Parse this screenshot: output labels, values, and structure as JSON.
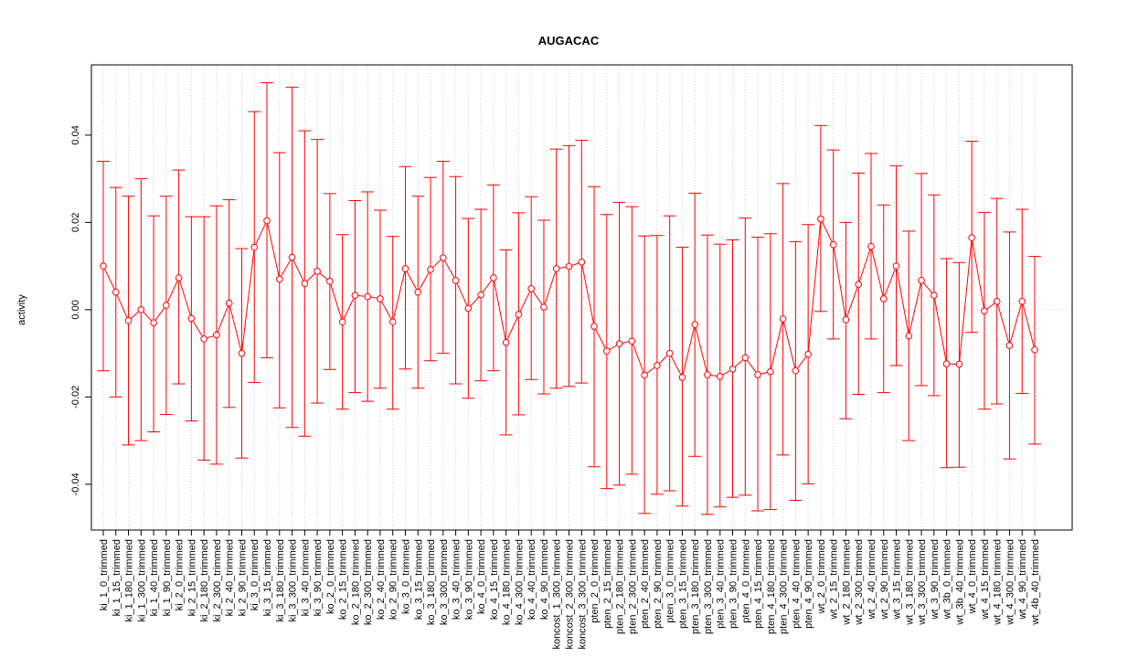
{
  "chart_data": {
    "type": "errorbar",
    "title": "AUGACAC",
    "ylabel": "activity",
    "categories": [
      "ki_1_0_trimmed",
      "ki_1_15_trimmed",
      "ki_1_180_trimmed",
      "ki_1_300_trimmed",
      "ki_1_40_trimmed",
      "ki_1_90_trimmed",
      "ki_2_0_trimmed",
      "ki_2_15_trimmed",
      "ki_2_180_trimmed",
      "ki_2_300_trimmed",
      "ki_2_40_trimmed",
      "ki_2_90_trimmed",
      "ki_3_0_trimmed",
      "ki_3_15_trimmed",
      "ki_3_180_trimmed",
      "ki_3_300_trimmed",
      "ki_3_40_trimmed",
      "ki_3_90_trimmed",
      "ko_2_0_trimmed",
      "ko_2_15_trimmed",
      "ko_2_180_trimmed",
      "ko_2_300_trimmed",
      "ko_2_40_trimmed",
      "ko_2_90_trimmed",
      "ko_3_0_trimmed",
      "ko_3_15_trimmed",
      "ko_3_180_trimmed",
      "ko_3_300_trimmed",
      "ko_3_40_trimmed",
      "ko_3_90_trimmed",
      "ko_4_0_trimmed",
      "ko_4_15_trimmed",
      "ko_4_180_trimmed",
      "ko_4_300_trimmed",
      "ko_4_40_trimmed",
      "ko_4_90_trimmed",
      "koncost_1_300_trimmed",
      "koncost_2_300_trimmed",
      "koncost_3_300_trimmed",
      "pten_2_0_trimmed",
      "pten_2_15_trimmed",
      "pten_2_180_trimmed",
      "pten_2_300_trimmed",
      "pten_2_40_trimmed",
      "pten_2_90_trimmed",
      "pten_3_0_trimmed",
      "pten_3_15_trimmed",
      "pten_3_180_trimmed",
      "pten_3_300_trimmed",
      "pten_3_40_trimmed",
      "pten_3_90_trimmed",
      "pten_4_0_trimmed",
      "pten_4_15_trimmed",
      "pten_4_180_trimmed",
      "pten_4_300_trimmed",
      "pten_4_40_trimmed",
      "pten_4_90_trimmed",
      "wt_2_0_trimmed",
      "wt_2_15_trimmed",
      "wt_2_180_trimmed",
      "wt_2_300_trimmed",
      "wt_2_40_trimmed",
      "wt_2_90_trimmed",
      "wt_3_15_trimmed",
      "wt_3_180_trimmed",
      "wt_3_300_trimmed",
      "wt_3_90_trimmed",
      "wt_3b_0_trimmed",
      "wt_3b_40_trimmed",
      "wt_4_0_trimmed",
      "wt_4_15_trimmed",
      "wt_4_180_trimmed",
      "wt_4_300_trimmed",
      "wt_4_90_trimmed",
      "wt_4b_40_trimmed"
    ],
    "values": [
      0.01,
      0.004,
      -0.0025,
      0.0,
      -0.003,
      0.001,
      0.0073,
      -0.002,
      -0.0067,
      -0.0058,
      0.0015,
      -0.01,
      0.0143,
      0.0204,
      0.007,
      0.012,
      0.006,
      0.0088,
      0.0065,
      -0.0028,
      0.0033,
      0.003,
      0.0025,
      -0.0028,
      0.0094,
      0.004,
      0.0092,
      0.0119,
      0.0067,
      0.0003,
      0.0034,
      0.0073,
      -0.0075,
      -0.0011,
      0.0048,
      0.0006,
      0.0094,
      0.0099,
      0.0109,
      -0.0038,
      -0.0095,
      -0.0078,
      -0.0072,
      -0.015,
      -0.0128,
      -0.01,
      -0.0155,
      -0.0034,
      -0.0149,
      -0.0153,
      -0.0136,
      -0.011,
      -0.0149,
      -0.0142,
      -0.0021,
      -0.014,
      -0.0102,
      0.0208,
      0.0149,
      -0.0023,
      0.0058,
      0.0145,
      0.0025,
      0.01,
      -0.006,
      0.0067,
      0.0033,
      -0.0124,
      -0.0125,
      0.0165,
      -0.0003,
      0.0019,
      -0.0082,
      0.0019,
      -0.0092
    ],
    "upper": [
      0.034,
      0.028,
      0.026,
      0.03,
      0.0215,
      0.026,
      0.032,
      0.0213,
      0.0213,
      0.0238,
      0.0252,
      0.014,
      0.0454,
      0.052,
      0.036,
      0.051,
      0.041,
      0.039,
      0.0266,
      0.0172,
      0.025,
      0.027,
      0.0228,
      0.0168,
      0.0328,
      0.026,
      0.0303,
      0.034,
      0.0305,
      0.0209,
      0.023,
      0.0286,
      0.0137,
      0.0222,
      0.0259,
      0.0205,
      0.0368,
      0.0376,
      0.0388,
      0.0282,
      0.0218,
      0.0246,
      0.0236,
      0.0169,
      0.017,
      0.0215,
      0.0143,
      0.0267,
      0.0171,
      0.015,
      0.016,
      0.021,
      0.0166,
      0.0174,
      0.0289,
      0.0156,
      0.0195,
      0.0422,
      0.0366,
      0.02,
      0.0313,
      0.0358,
      0.024,
      0.033,
      0.018,
      0.0312,
      0.0263,
      0.0117,
      0.0108,
      0.0386,
      0.0223,
      0.0255,
      0.0178,
      0.023,
      0.0122
    ],
    "lower": [
      -0.014,
      -0.02,
      -0.031,
      -0.03,
      -0.028,
      -0.024,
      -0.017,
      -0.0255,
      -0.0345,
      -0.0354,
      -0.0224,
      -0.034,
      -0.0167,
      -0.011,
      -0.0225,
      -0.027,
      -0.029,
      -0.0214,
      -0.0137,
      -0.0228,
      -0.019,
      -0.021,
      -0.018,
      -0.0228,
      -0.0136,
      -0.018,
      -0.0117,
      -0.01,
      -0.017,
      -0.0203,
      -0.0163,
      -0.014,
      -0.0287,
      -0.0241,
      -0.016,
      -0.0193,
      -0.018,
      -0.0176,
      -0.0168,
      -0.036,
      -0.041,
      -0.0402,
      -0.0377,
      -0.0467,
      -0.0423,
      -0.0415,
      -0.045,
      -0.0336,
      -0.0469,
      -0.0452,
      -0.043,
      -0.0425,
      -0.0461,
      -0.0458,
      -0.0333,
      -0.0437,
      -0.0399,
      -0.0004,
      -0.0067,
      -0.025,
      -0.0194,
      -0.0067,
      -0.019,
      -0.0128,
      -0.03,
      -0.0174,
      -0.0197,
      -0.0362,
      -0.0361,
      -0.0052,
      -0.0228,
      -0.0216,
      -0.0342,
      -0.0192,
      -0.0308
    ],
    "color": "#ff0000",
    "ylim": [
      -0.0505,
      0.0561
    ],
    "yticks": [
      -0.04,
      -0.02,
      {
        "value": 0,
        "label": "0.00"
      },
      0.02,
      0.04
    ],
    "grid": true
  }
}
